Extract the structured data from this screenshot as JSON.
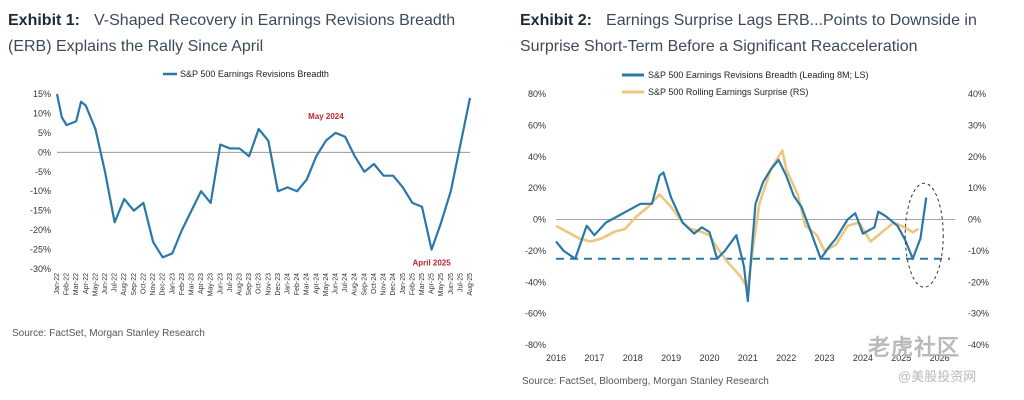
{
  "exhibit1": {
    "label": "Exhibit 1:",
    "title": "V-Shaped Recovery in Earnings Revisions Breadth (ERB) Explains the Rally Since April",
    "source": "Source: FactSet, Morgan Stanley Research"
  },
  "exhibit2": {
    "label": "Exhibit 2:",
    "title": "Earnings Surprise Lags ERB...Points to Downside in Surprise Short-Term Before a Significant Reacceleration",
    "source": "Source: FactSet, Bloomberg, Morgan Stanley Research"
  },
  "watermark": {
    "brand": "老虎社区",
    "handle": "@美股投资网"
  },
  "colors": {
    "erb": "#2a78a8",
    "surprise": "#ecc77f",
    "zero": "#888888",
    "annotation": "#c0262d",
    "threshold": "#2a78a8"
  },
  "chart_data": [
    {
      "type": "line",
      "series": [
        {
          "name": "S&P 500 Earnings Revisions Breadth",
          "points": [
            [
              "2022-01",
              15
            ],
            [
              "2022-01",
              9
            ],
            [
              "2022-02",
              7
            ],
            [
              "2022-03",
              8
            ],
            [
              "2022-03",
              13
            ],
            [
              "2022-04",
              12
            ],
            [
              "2022-05",
              6
            ],
            [
              "2022-06",
              -5
            ],
            [
              "2022-07",
              -18
            ],
            [
              "2022-08",
              -12
            ],
            [
              "2022-09",
              -15
            ],
            [
              "2022-10",
              -13
            ],
            [
              "2022-11",
              -23
            ],
            [
              "2022-12",
              -27
            ],
            [
              "2023-01",
              -26
            ],
            [
              "2023-02",
              -20
            ],
            [
              "2023-03",
              -15
            ],
            [
              "2023-04",
              -10
            ],
            [
              "2023-05",
              -13
            ],
            [
              "2023-06",
              2
            ],
            [
              "2023-07",
              1
            ],
            [
              "2023-08",
              1
            ],
            [
              "2023-09",
              -1
            ],
            [
              "2023-10",
              6
            ],
            [
              "2023-11",
              3
            ],
            [
              "2023-12",
              -10
            ],
            [
              "2024-01",
              -9
            ],
            [
              "2024-02",
              -10
            ],
            [
              "2024-03",
              -7
            ],
            [
              "2024-04",
              -1
            ],
            [
              "2024-05",
              3
            ],
            [
              "2024-06",
              5
            ],
            [
              "2024-07",
              4
            ],
            [
              "2024-08",
              -1
            ],
            [
              "2024-09",
              -5
            ],
            [
              "2024-10",
              -3
            ],
            [
              "2024-11",
              -6
            ],
            [
              "2024-12",
              -6
            ],
            [
              "2025-01",
              -9
            ],
            [
              "2025-02",
              -13
            ],
            [
              "2025-03",
              -14
            ],
            [
              "2025-04",
              -25
            ],
            [
              "2025-05",
              -18
            ],
            [
              "2025-06",
              -10
            ],
            [
              "2025-07",
              2
            ],
            [
              "2025-08",
              14
            ]
          ]
        }
      ],
      "ylim": [
        -30,
        15
      ],
      "yticks": [
        "15%",
        "10%",
        "5%",
        "0%",
        "-5%",
        "-10%",
        "-15%",
        "-20%",
        "-25%",
        "-30%"
      ],
      "xticks": [
        "Jan-22",
        "Feb-22",
        "Mar-22",
        "Apr-22",
        "May-22",
        "Jun-22",
        "Jul-22",
        "Aug-22",
        "Sep-22",
        "Oct-22",
        "Nov-22",
        "Dec-22",
        "Jan-23",
        "Feb-23",
        "Mar-23",
        "Apr-23",
        "May-23",
        "Jun-23",
        "Jul-23",
        "Aug-23",
        "Sep-23",
        "Oct-23",
        "Nov-23",
        "Dec-23",
        "Jan-24",
        "Feb-24",
        "Mar-24",
        "Apr-24",
        "May-24",
        "Jun-24",
        "Jul-24",
        "Aug-24",
        "Sep-24",
        "Oct-24",
        "Nov-24",
        "Dec-24",
        "Jan-25",
        "Feb-25",
        "Mar-25",
        "Apr-25",
        "May-25",
        "Jun-25",
        "Jul-25",
        "Aug-25"
      ],
      "annotations": [
        {
          "text": "May 2024",
          "x": "2024-05",
          "y": 5
        },
        {
          "text": "April 2025",
          "x": "2025-04",
          "y": -25
        }
      ],
      "legend_position": "top"
    },
    {
      "type": "line",
      "series": [
        {
          "name": "S&P 500 Earnings Revisions Breadth (Leading 8M; LS)",
          "axis": "left",
          "points": [
            [
              2016.0,
              -14
            ],
            [
              2016.2,
              -20
            ],
            [
              2016.5,
              -25
            ],
            [
              2016.8,
              -4
            ],
            [
              2017.0,
              -10
            ],
            [
              2017.3,
              -2
            ],
            [
              2017.6,
              2
            ],
            [
              2017.9,
              6
            ],
            [
              2018.2,
              10
            ],
            [
              2018.5,
              10
            ],
            [
              2018.7,
              28
            ],
            [
              2018.8,
              30
            ],
            [
              2019.0,
              14
            ],
            [
              2019.3,
              -2
            ],
            [
              2019.6,
              -9
            ],
            [
              2019.8,
              -5
            ],
            [
              2020.0,
              -8
            ],
            [
              2020.2,
              -25
            ],
            [
              2020.4,
              -20
            ],
            [
              2020.7,
              -10
            ],
            [
              2020.9,
              -30
            ],
            [
              2021.0,
              -52
            ],
            [
              2021.1,
              -20
            ],
            [
              2021.2,
              10
            ],
            [
              2021.4,
              24
            ],
            [
              2021.6,
              32
            ],
            [
              2021.8,
              38
            ],
            [
              2022.0,
              28
            ],
            [
              2022.2,
              15
            ],
            [
              2022.4,
              8
            ],
            [
              2022.6,
              -5
            ],
            [
              2022.9,
              -25
            ],
            [
              2023.1,
              -18
            ],
            [
              2023.3,
              -12
            ],
            [
              2023.6,
              0
            ],
            [
              2023.8,
              4
            ],
            [
              2024.0,
              -9
            ],
            [
              2024.3,
              -5
            ],
            [
              2024.4,
              5
            ],
            [
              2024.6,
              2
            ],
            [
              2024.9,
              -4
            ],
            [
              2025.1,
              -13
            ],
            [
              2025.3,
              -25
            ],
            [
              2025.5,
              -12
            ],
            [
              2025.65,
              14
            ]
          ]
        },
        {
          "name": "S&P 500 Rolling Earnings Surprise (RS)",
          "axis": "right",
          "points": [
            [
              2016.0,
              -2
            ],
            [
              2016.3,
              -4
            ],
            [
              2016.6,
              -6
            ],
            [
              2016.9,
              -7
            ],
            [
              2017.2,
              -6
            ],
            [
              2017.5,
              -4
            ],
            [
              2017.8,
              -3
            ],
            [
              2018.1,
              1
            ],
            [
              2018.4,
              4
            ],
            [
              2018.7,
              8
            ],
            [
              2019.0,
              4
            ],
            [
              2019.3,
              -1
            ],
            [
              2019.5,
              -3
            ],
            [
              2019.8,
              -4
            ],
            [
              2020.0,
              -5
            ],
            [
              2020.2,
              -9
            ],
            [
              2020.5,
              -14
            ],
            [
              2020.8,
              -18
            ],
            [
              2021.0,
              -22
            ],
            [
              2021.1,
              -12
            ],
            [
              2021.3,
              5
            ],
            [
              2021.6,
              16
            ],
            [
              2021.9,
              22
            ],
            [
              2022.0,
              16
            ],
            [
              2022.3,
              8
            ],
            [
              2022.5,
              -2
            ],
            [
              2022.8,
              -5
            ],
            [
              2023.0,
              -10
            ],
            [
              2023.3,
              -8
            ],
            [
              2023.6,
              -2
            ],
            [
              2023.9,
              -1
            ],
            [
              2024.2,
              -7
            ],
            [
              2024.5,
              -4
            ],
            [
              2024.8,
              -1
            ],
            [
              2025.0,
              -2
            ],
            [
              2025.3,
              -4
            ],
            [
              2025.45,
              -3
            ]
          ]
        }
      ],
      "ylim_left": [
        -80,
        80
      ],
      "ylim_right": [
        -40,
        40
      ],
      "yticks_left": [
        "80%",
        "60%",
        "40%",
        "20%",
        "0%",
        "-20%",
        "-40%",
        "-60%",
        "-80%"
      ],
      "yticks_right": [
        "40%",
        "30%",
        "20%",
        "10%",
        "0%",
        "-10%",
        "-20%",
        "-30%",
        "-40%"
      ],
      "xlim": [
        2016,
        2026.4
      ],
      "xticks": [
        "2016",
        "2017",
        "2018",
        "2019",
        "2020",
        "2021",
        "2022",
        "2023",
        "2024",
        "2025",
        "2026"
      ],
      "threshold_line": -25,
      "legend_position": "top"
    }
  ]
}
